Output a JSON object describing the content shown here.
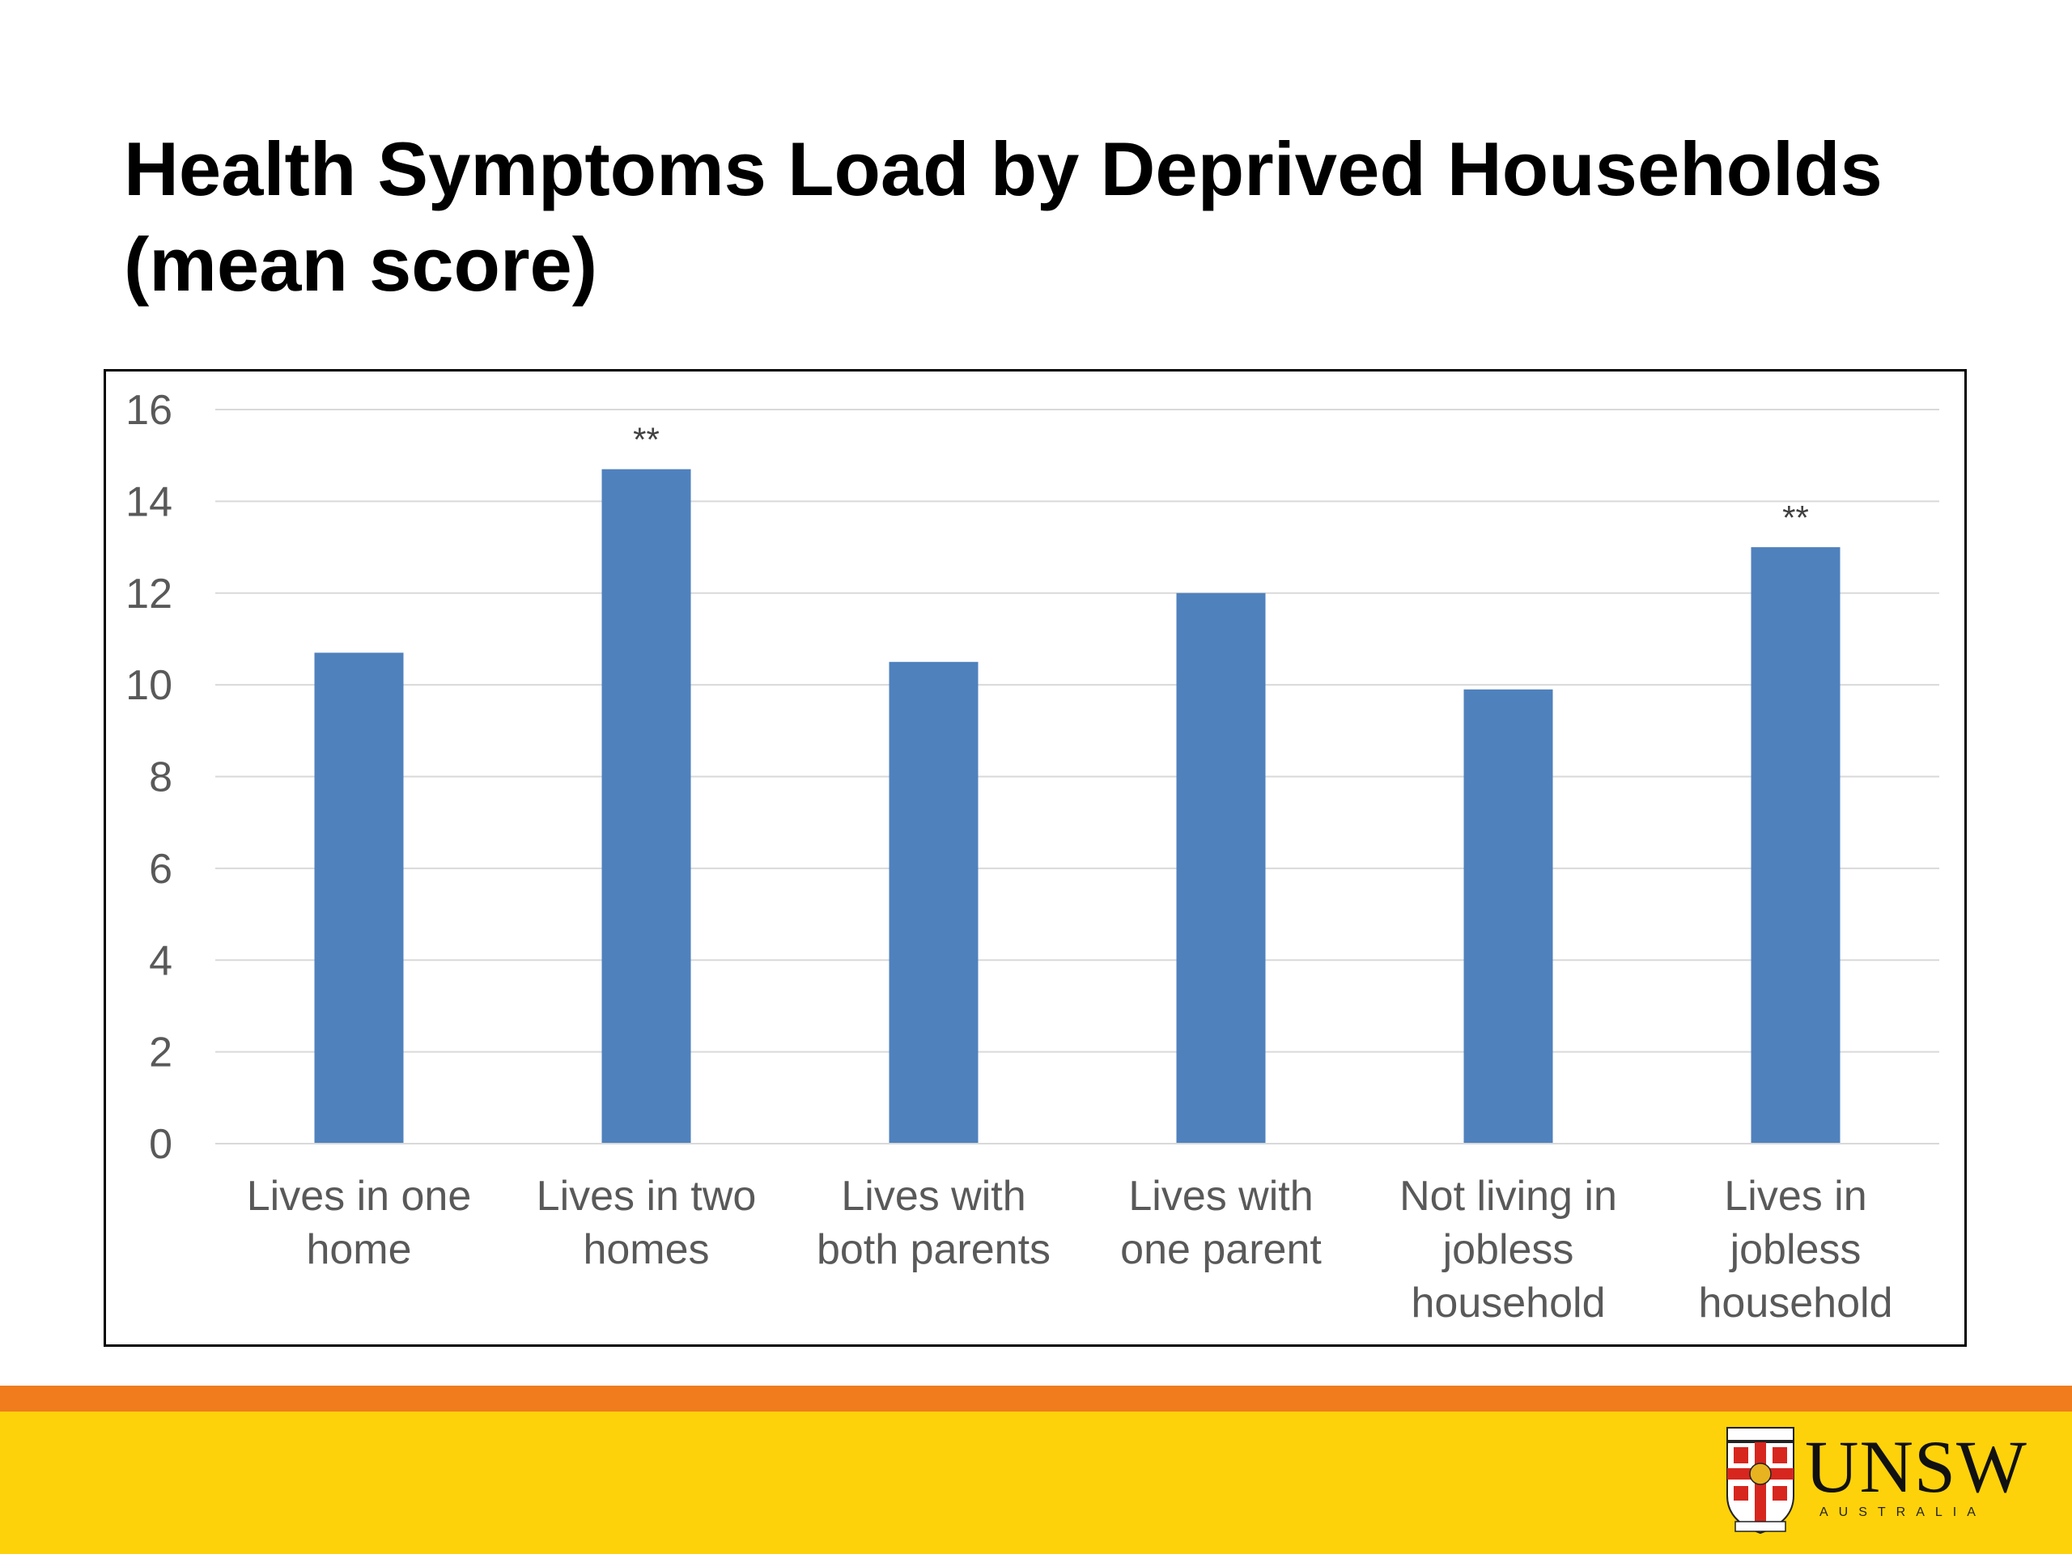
{
  "title": {
    "line1": "Health Symptoms Load by Deprived Households",
    "line2": "(mean score)"
  },
  "colors": {
    "bar": "#4f81bd",
    "grid": "#d9d9d9",
    "axis_text": "#595959",
    "footer_orange": "#f07c1e",
    "footer_yellow": "#fdd20a"
  },
  "chart_data": {
    "type": "bar",
    "title": "Health Symptoms Load by Deprived Households (mean score)",
    "categories": [
      [
        "Lives in one",
        "home"
      ],
      [
        "Lives in two",
        "homes"
      ],
      [
        "Lives with",
        "both parents"
      ],
      [
        "Lives with",
        "one parent"
      ],
      [
        "Not living in",
        "jobless",
        "household"
      ],
      [
        "Lives in",
        "jobless",
        "household"
      ]
    ],
    "values": [
      10.7,
      14.7,
      10.5,
      12.0,
      9.9,
      13.0
    ],
    "annotations": [
      "",
      "**",
      "",
      "",
      "",
      "**"
    ],
    "ylim": [
      0,
      16
    ],
    "yticks": [
      0,
      2,
      4,
      6,
      8,
      10,
      12,
      14,
      16
    ],
    "grid": true,
    "legend": "none",
    "xlabel": "",
    "ylabel": ""
  },
  "logo": {
    "name": "UNSW",
    "sub": "AUSTRALIA"
  }
}
